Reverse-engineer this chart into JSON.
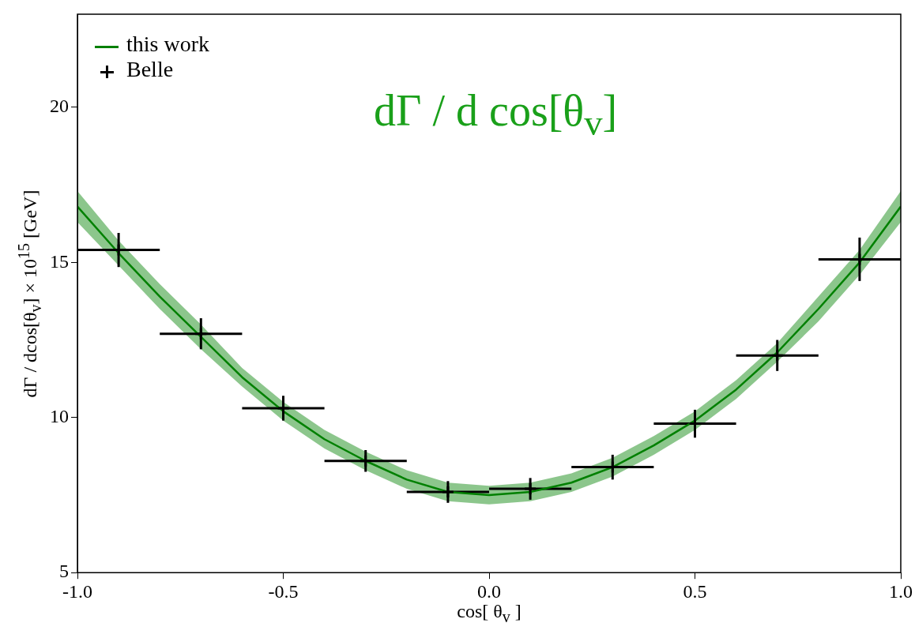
{
  "chart_data": {
    "type": "line",
    "xlabel": "cos[ θ$_{v}$ ]",
    "ylabel": "dΓ / dcos[θ$_{v}$] × 10$^{15}$  [GeV]",
    "annotations": [
      "dΓ / d cos[θ$_{v}$]"
    ],
    "xlim": [
      -1,
      1
    ],
    "xticks": [
      {
        "value": -1,
        "label": "-1.0"
      },
      {
        "value": -0.5,
        "label": "-0.5"
      },
      {
        "value": 0,
        "label": "0.0"
      },
      {
        "value": 0.5,
        "label": "0.5"
      },
      {
        "value": 1,
        "label": "1.0"
      }
    ],
    "ylim": [
      5,
      23
    ],
    "yticks": [
      5,
      10,
      15,
      20
    ],
    "grid": false,
    "legend": "top left",
    "series": [
      {
        "name": "this work",
        "color": "#008000",
        "x": [
          -1,
          -0.9,
          -0.8,
          -0.7,
          -0.6,
          -0.5,
          -0.4,
          -0.3,
          -0.2,
          -0.1,
          0,
          0.1,
          0.2,
          0.3,
          0.4,
          0.5,
          0.6,
          0.7,
          0.8,
          0.9,
          1
        ],
        "values": [
          16.8,
          15.3,
          13.9,
          12.6,
          11.3,
          10.2,
          9.3,
          8.6,
          8.0,
          7.6,
          7.5,
          7.6,
          7.9,
          8.4,
          9.1,
          9.9,
          10.9,
          12.1,
          13.5,
          15.0,
          16.8
        ],
        "lower": [
          16.3,
          14.9,
          13.5,
          12.2,
          11.0,
          9.9,
          9.0,
          8.3,
          7.7,
          7.3,
          7.2,
          7.3,
          7.6,
          8.1,
          8.8,
          9.6,
          10.6,
          11.8,
          13.1,
          14.6,
          16.3
        ],
        "upper": [
          17.3,
          15.7,
          14.3,
          13.0,
          11.6,
          10.5,
          9.6,
          8.9,
          8.3,
          7.9,
          7.8,
          7.9,
          8.2,
          8.7,
          9.4,
          10.2,
          11.2,
          12.4,
          13.9,
          15.4,
          17.3
        ]
      },
      {
        "name": "Belle",
        "type": "scatter",
        "color": "#000000",
        "x": [
          -0.9,
          -0.7,
          -0.5,
          -0.3,
          -0.1,
          0.1,
          0.3,
          0.5,
          0.7,
          0.9
        ],
        "values": [
          15.4,
          12.7,
          10.3,
          8.6,
          7.6,
          7.7,
          8.4,
          9.8,
          12.0,
          15.1
        ],
        "errors": [
          0.55,
          0.5,
          0.4,
          0.35,
          0.35,
          0.35,
          0.4,
          0.45,
          0.5,
          0.7
        ],
        "xerrors": [
          0.1,
          0.1,
          0.1,
          0.1,
          0.1,
          0.1,
          0.1,
          0.1,
          0.1,
          0.1
        ]
      }
    ]
  }
}
